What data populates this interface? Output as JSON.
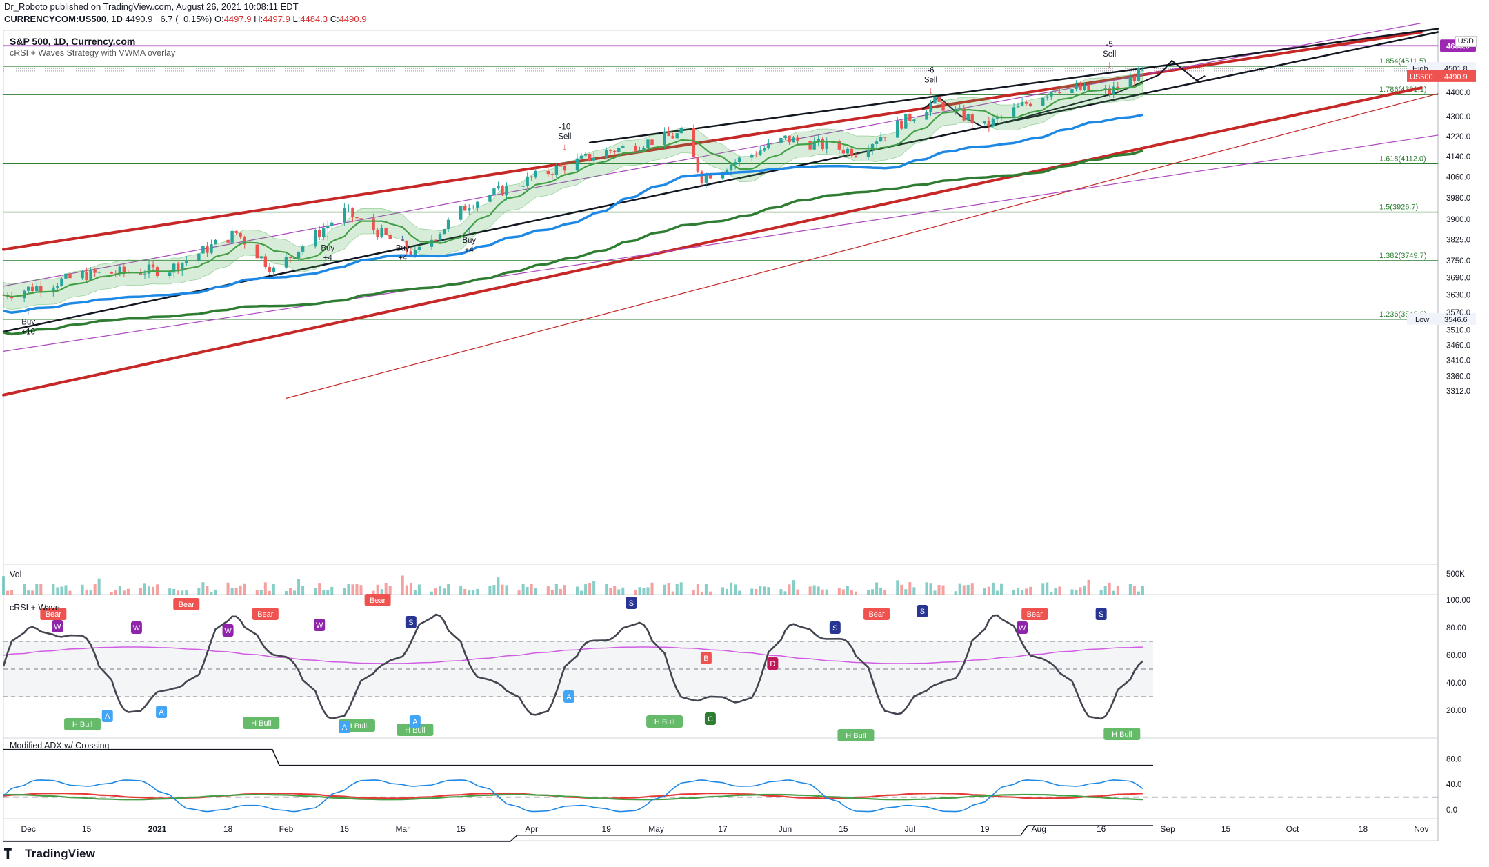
{
  "header": {
    "publisher_line": "Dr_Roboto published on TradingView.com, August 26, 2021 10:08:11 EDT",
    "symbol": "CURRENCYCOM:US500, 1D",
    "price": "4490.9",
    "change": "−6.7 (−0.15%)",
    "ohlc_o_label": "O:",
    "ohlc_o": "4497.9",
    "ohlc_h_label": "H:",
    "ohlc_h": "4497.9",
    "ohlc_l_label": "L:",
    "ohlc_l": "4484.3",
    "ohlc_c_label": "C:",
    "ohlc_c": "4490.9"
  },
  "chart_title": "S&P 500, 1D, Currency.com",
  "chart_subtitle": "cRSI + Waves Strategy with VWMA overlay",
  "currency": "USD",
  "price_axis": [
    "4400.0",
    "4300.0",
    "4220.0",
    "4140.0",
    "4060.0",
    "3980.0",
    "3900.0",
    "3825.0",
    "3750.0",
    "3690.0",
    "3630.0",
    "3570.0",
    "3510.0",
    "3460.0",
    "3410.0",
    "3360.0",
    "3312.0"
  ],
  "price_tags": {
    "level_4600": "4600.0",
    "high_label": "High",
    "high_value": "4501.8",
    "symbol_label": "US500",
    "last_value": "4490.9",
    "low_label": "Low",
    "low_value": "3546.6"
  },
  "fib_labels": [
    "1.854(4511.5)",
    "1.786(4391.1)",
    "1.618(4112.0)",
    "1.5(3926.7)",
    "1.382(3749.7)",
    "1.236(3546.6)"
  ],
  "signals": {
    "sell_10": [
      "-10",
      "Sell"
    ],
    "sell_6": [
      "-6",
      "Sell"
    ],
    "sell_5": [
      "-5",
      "Sell"
    ],
    "buy_10": [
      "Buy",
      "+10"
    ],
    "buy_4a": [
      "Buy",
      "+4"
    ],
    "buy_4b": [
      "Buy",
      "+4"
    ],
    "buy_4c": [
      "Buy",
      "+4"
    ]
  },
  "volume": {
    "label": "Vol",
    "axis": "500K"
  },
  "crsi": {
    "label": "cRSI + Wave",
    "axis": [
      "100.00",
      "80.00",
      "60.00",
      "40.00",
      "20.00"
    ],
    "badges": {
      "bear": "Bear",
      "h_bull": "H Bull",
      "a": "A",
      "w": "W",
      "s": "S",
      "b": "B",
      "d": "D",
      "c": "C"
    }
  },
  "adx": {
    "label": "Modified ADX w/ Crossing",
    "axis": [
      "80.0",
      "40.0",
      "0.0"
    ]
  },
  "time_axis": [
    "Dec",
    "15",
    "2021",
    "18",
    "Feb",
    "15",
    "Mar",
    "15",
    "Apr",
    "19",
    "May",
    "17",
    "Jun",
    "15",
    "Jul",
    "19",
    "Aug",
    "16",
    "Sep",
    "15",
    "Oct",
    "18",
    "Nov"
  ],
  "footer": {
    "logo": "TradingView"
  },
  "colors": {
    "up": "#26a69a",
    "down": "#ef5350",
    "fib_green": "#2e7d32",
    "channel_red": "#c62828",
    "vwma_green": "#43a047",
    "ma_blue": "#1e88e5",
    "ma_dark_green": "#2e7d32",
    "purple": "#ab47bc",
    "tag_purple": "#9c27b0"
  },
  "chart_data": {
    "type": "candlestick",
    "title": "S&P 500, 1D, Currency.com",
    "y_scale": "log",
    "x_range": [
      "2020-11-25",
      "2021-11-05"
    ],
    "y_range": [
      3280,
      4680
    ],
    "last_close": 4490.9,
    "high": 4501.8,
    "low": 3546.6,
    "fib_levels": [
      {
        "ratio": 1.854,
        "price": 4511.5
      },
      {
        "ratio": 1.786,
        "price": 4391.1
      },
      {
        "ratio": 1.618,
        "price": 4112.0
      },
      {
        "ratio": 1.5,
        "price": 3926.7
      },
      {
        "ratio": 1.382,
        "price": 3749.7
      },
      {
        "ratio": 1.236,
        "price": 3546.6
      }
    ],
    "horizontal_level": 4600.0,
    "approx_close_path": [
      {
        "date": "2020-11-25",
        "close": 3630
      },
      {
        "date": "2020-12-15",
        "close": 3700
      },
      {
        "date": "2021-01-04",
        "close": 3720
      },
      {
        "date": "2021-01-20",
        "close": 3850
      },
      {
        "date": "2021-01-29",
        "close": 3715
      },
      {
        "date": "2021-02-15",
        "close": 3930
      },
      {
        "date": "2021-03-04",
        "close": 3770
      },
      {
        "date": "2021-03-17",
        "close": 3960
      },
      {
        "date": "2021-04-05",
        "close": 4080
      },
      {
        "date": "2021-04-19",
        "close": 4160
      },
      {
        "date": "2021-05-07",
        "close": 4230
      },
      {
        "date": "2021-05-12",
        "close": 4060
      },
      {
        "date": "2021-06-01",
        "close": 4210
      },
      {
        "date": "2021-06-18",
        "close": 4160
      },
      {
        "date": "2021-07-07",
        "close": 4360
      },
      {
        "date": "2021-07-19",
        "close": 4260
      },
      {
        "date": "2021-08-05",
        "close": 4420
      },
      {
        "date": "2021-08-18",
        "close": 4400
      },
      {
        "date": "2021-08-26",
        "close": 4490.9
      }
    ]
  }
}
